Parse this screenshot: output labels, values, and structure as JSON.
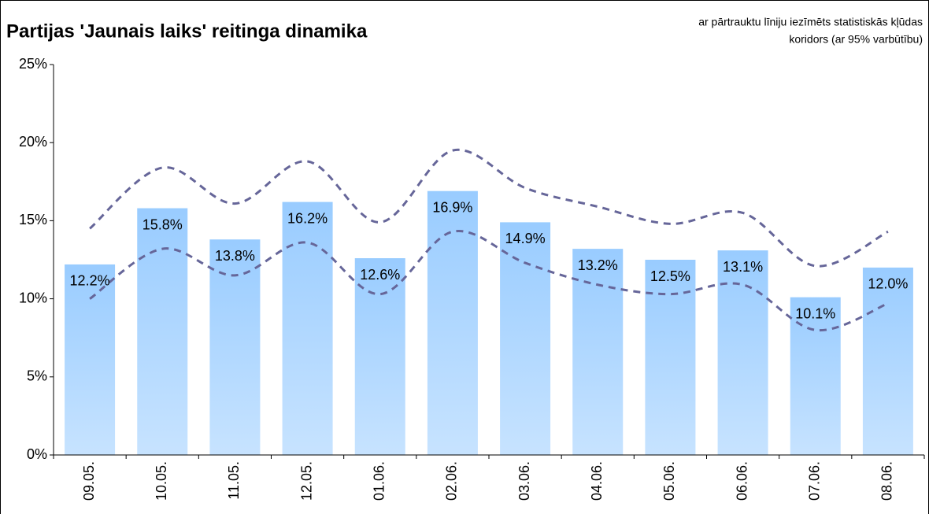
{
  "chart_data": {
    "type": "bar",
    "title": "Partijas 'Jaunais laiks' reitinga dinamika",
    "annotation": [
      "ar pārtrauktu līniju iezīmēts statistiskās kļūdas",
      "koridors (ar 95% varbūtību)"
    ],
    "categories": [
      "09.05.",
      "10.05.",
      "11.05.",
      "12.05.",
      "01.06.",
      "02.06.",
      "03.06.",
      "04.06.",
      "05.06.",
      "06.06.",
      "07.06.",
      "08.06."
    ],
    "series": [
      {
        "type": "bar",
        "color": "#99ccff",
        "values": [
          12.2,
          15.8,
          13.8,
          16.2,
          12.6,
          16.9,
          14.9,
          13.2,
          12.5,
          13.1,
          10.1,
          12.0
        ],
        "value_labels": [
          "12.2%",
          "15.8%",
          "13.8%",
          "16.2%",
          "12.6%",
          "16.9%",
          "14.9%",
          "13.2%",
          "12.5%",
          "13.1%",
          "10.1%",
          "12.0%"
        ]
      },
      {
        "type": "line",
        "color": "#666699",
        "dashed": true,
        "values": [
          14.5,
          18.4,
          16.1,
          18.8,
          14.9,
          19.5,
          17.1,
          15.9,
          14.8,
          15.5,
          12.1,
          14.3
        ]
      },
      {
        "type": "line",
        "color": "#666699",
        "dashed": true,
        "values": [
          10.0,
          13.2,
          11.5,
          13.6,
          10.3,
          14.3,
          12.3,
          10.9,
          10.3,
          10.9,
          8.0,
          9.7
        ]
      }
    ],
    "ylim": [
      0,
      25
    ],
    "yticks": [
      {
        "value": 0,
        "label": "0%"
      },
      {
        "value": 5,
        "label": "5%"
      },
      {
        "value": 10,
        "label": "10%"
      },
      {
        "value": 15,
        "label": "15%"
      },
      {
        "value": 20,
        "label": "20%"
      },
      {
        "value": 25,
        "label": "25%"
      }
    ],
    "grid": false
  }
}
